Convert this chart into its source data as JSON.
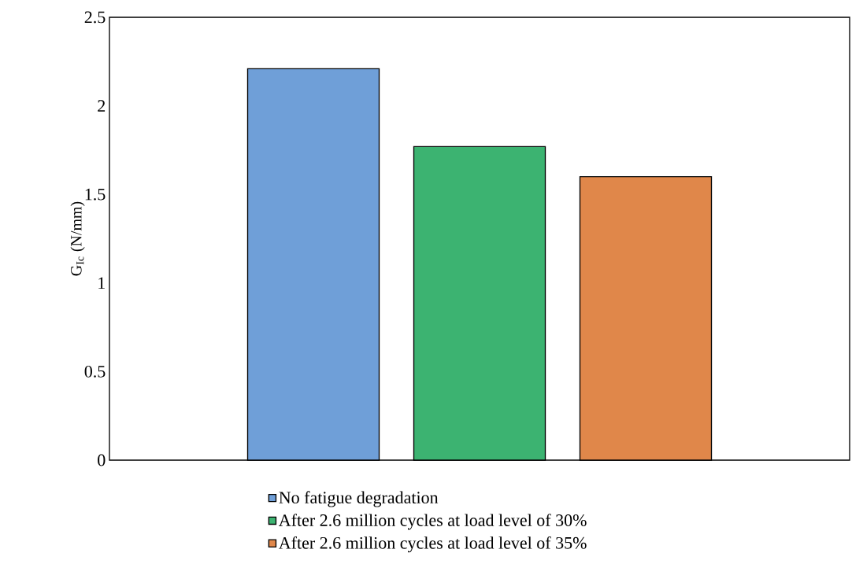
{
  "chart_data": {
    "type": "bar",
    "ylabel": "G$_{Ic}$ (N/mm)",
    "categories": [
      null
    ],
    "series": [
      {
        "name": "No fatigue degradation",
        "color": "#6f9fd8",
        "values": [
          2.21
        ]
      },
      {
        "name": "After 2.6 million cycles at load level of 30%",
        "color": "#3cb371",
        "values": [
          1.77
        ]
      },
      {
        "name": "After 2.6 million cycles at load level of 35%",
        "color": "#e0874a",
        "values": [
          1.6
        ]
      }
    ],
    "ylim": [
      0,
      2.5
    ],
    "yticks": [
      0,
      0.5,
      1,
      1.5,
      2,
      2.5
    ],
    "legend": "bottom"
  }
}
